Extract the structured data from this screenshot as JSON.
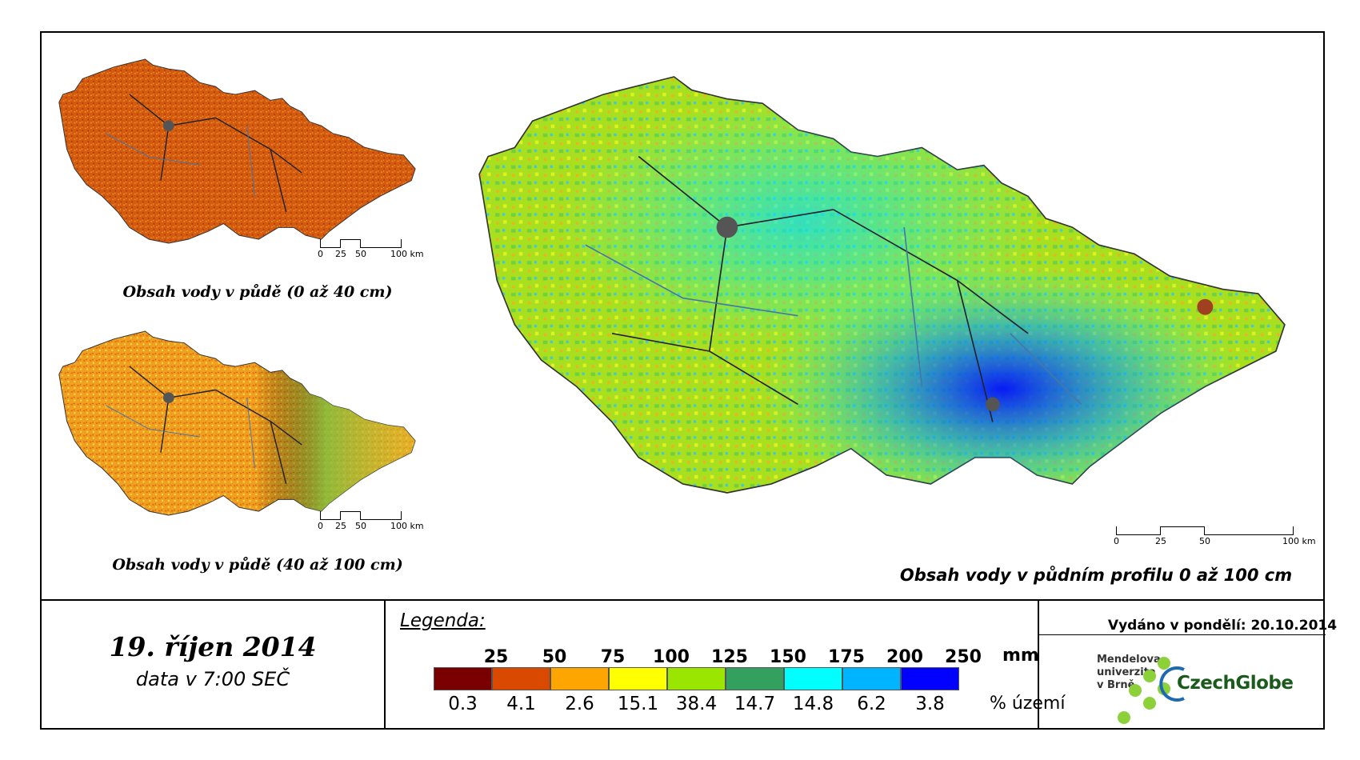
{
  "maps": {
    "top_left_caption": "Obsah vody v půdě (0 až 40 cm)",
    "mid_left_caption": "Obsah vody v půdě (40 až 100 cm)",
    "main_caption": "Obsah vody v půdním profilu 0 až 100 cm",
    "scale_labels": [
      "0",
      "25",
      "50",
      "100 km"
    ],
    "main_scale_labels": [
      "0",
      "25",
      "50",
      "100 km"
    ]
  },
  "footer": {
    "date": "19. říjen 2014",
    "time": "data v 7:00 SEČ",
    "issued": "Vydáno v pondělí: 20.10.2014",
    "mendel_lines": [
      "Mendelova",
      "univerzita",
      "v Brně"
    ],
    "czechglobe": "CzechGlobe"
  },
  "legend": {
    "title": "Legenda:",
    "unit": "mm",
    "pct_label": "% území",
    "thresholds": [
      "25",
      "50",
      "75",
      "100",
      "125",
      "150",
      "175",
      "200",
      "250"
    ],
    "colors": [
      "#7a0000",
      "#d94a00",
      "#ffa500",
      "#ffff00",
      "#9be600",
      "#33a060",
      "#00ffff",
      "#00b4ff",
      "#0000ff"
    ],
    "percentages": [
      "0.3",
      "4.1",
      "2.6",
      "15.1",
      "38.4",
      "14.7",
      "14.8",
      "6.2",
      "3.8"
    ]
  }
}
